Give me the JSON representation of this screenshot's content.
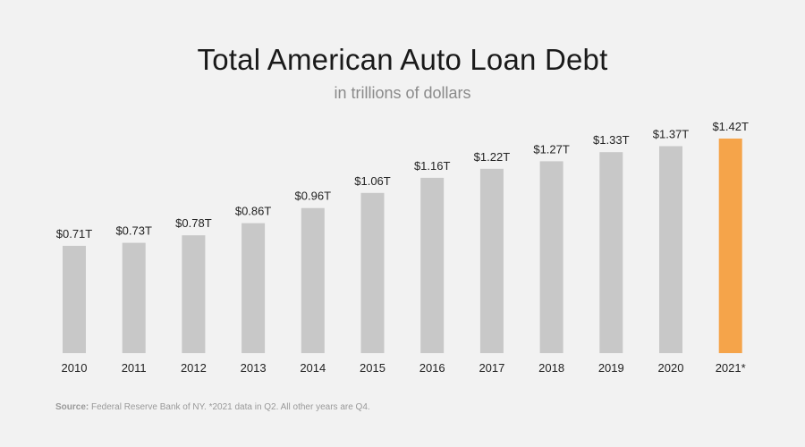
{
  "title": "Total American Auto Loan Debt",
  "subtitle": "in trillions of dollars",
  "source": {
    "label": "Source:",
    "text": "Federal Reserve Bank of NY. *2021 data in Q2. All other years are Q4."
  },
  "colors": {
    "bar": "#c8c8c8",
    "highlight": "#f5a44a"
  },
  "chart_data": {
    "type": "bar",
    "title": "Total American Auto Loan Debt",
    "subtitle": "in trillions of dollars",
    "categories": [
      "2010",
      "2011",
      "2012",
      "2013",
      "2014",
      "2015",
      "2016",
      "2017",
      "2018",
      "2019",
      "2020",
      "2021*"
    ],
    "values": [
      0.71,
      0.73,
      0.78,
      0.86,
      0.96,
      1.06,
      1.16,
      1.22,
      1.27,
      1.33,
      1.37,
      1.42
    ],
    "labels": [
      "$0.71T",
      "$0.73T",
      "$0.78T",
      "$0.86T",
      "$0.96T",
      "$1.06T",
      "$1.16T",
      "$1.22T",
      "$1.27T",
      "$1.33T",
      "$1.37T",
      "$1.42T"
    ],
    "highlight_index": 11,
    "ylim": [
      0,
      1.42
    ],
    "grid": false
  }
}
